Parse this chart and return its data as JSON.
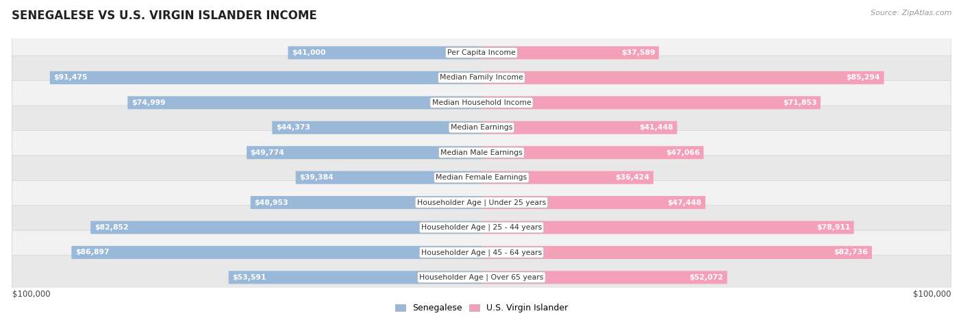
{
  "title": "SENEGALESE VS U.S. VIRGIN ISLANDER INCOME",
  "source": "Source: ZipAtlas.com",
  "max_value": 100000,
  "categories": [
    "Per Capita Income",
    "Median Family Income",
    "Median Household Income",
    "Median Earnings",
    "Median Male Earnings",
    "Median Female Earnings",
    "Householder Age | Under 25 years",
    "Householder Age | 25 - 44 years",
    "Householder Age | 45 - 64 years",
    "Householder Age | Over 65 years"
  ],
  "senegalese_values": [
    41000,
    91475,
    74999,
    44373,
    49774,
    39384,
    48953,
    82852,
    86897,
    53591
  ],
  "virgin_islander_values": [
    37589,
    85294,
    71853,
    41448,
    47066,
    36424,
    47448,
    78911,
    82736,
    52072
  ],
  "senegalese_color": "#9ab8d8",
  "virgin_islander_color": "#f4a0b8",
  "label_color_inside": "#ffffff",
  "label_color_outside": "#555555",
  "row_bg_light": "#f2f2f2",
  "row_bg_dark": "#e8e8e8",
  "background_color": "#ffffff",
  "xlabel_left": "$100,000",
  "xlabel_right": "$100,000",
  "legend_senegalese": "Senegalese",
  "legend_virgin": "U.S. Virgin Islander",
  "inside_threshold": 15000
}
